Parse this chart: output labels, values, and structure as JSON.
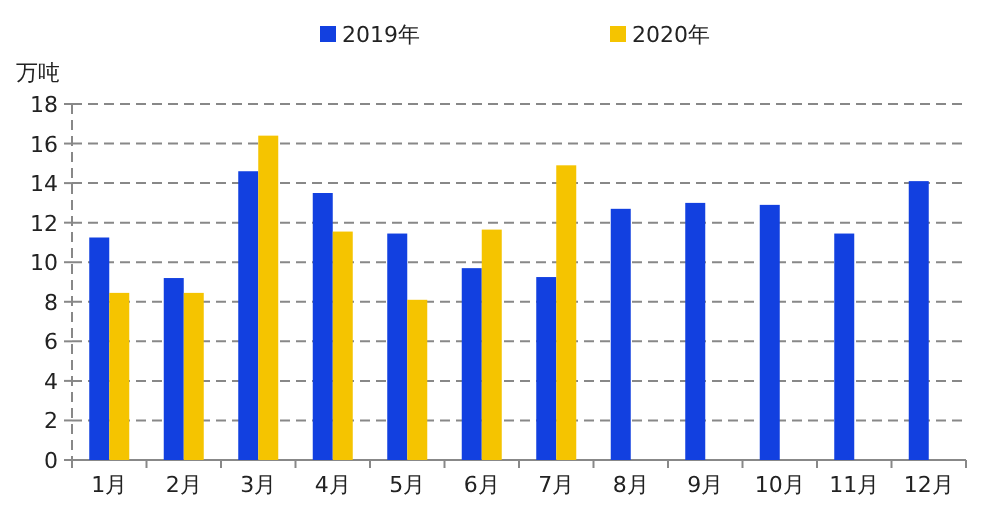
{
  "chart_data": {
    "type": "bar",
    "ylabel": "万吨",
    "categories": [
      "1月",
      "2月",
      "3月",
      "4月",
      "5月",
      "6月",
      "7月",
      "8月",
      "9月",
      "10月",
      "11月",
      "12月"
    ],
    "series": [
      {
        "name": "2019年",
        "color": "#1240e0",
        "values": [
          11.25,
          9.2,
          14.6,
          13.5,
          11.45,
          9.7,
          9.25,
          12.7,
          13.0,
          12.9,
          11.45,
          14.1
        ]
      },
      {
        "name": "2020年",
        "color": "#f5c400",
        "values": [
          8.45,
          8.45,
          16.4,
          11.55,
          8.1,
          11.65,
          14.9,
          null,
          null,
          null,
          null,
          null
        ]
      }
    ],
    "ylim": [
      0,
      18
    ],
    "yticks": [
      0,
      2,
      4,
      6,
      8,
      10,
      12,
      14,
      16,
      18
    ],
    "grid": "y",
    "legend": "top"
  }
}
